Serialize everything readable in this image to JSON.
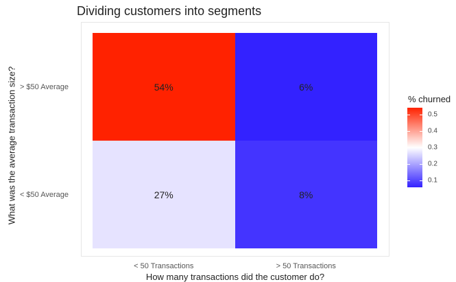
{
  "chart_data": {
    "type": "heatmap",
    "title": "Dividing customers into segments",
    "xlabel": "How many transactions did the customer do?",
    "ylabel": "What was the average transaction size?",
    "x_categories": [
      "< 50 Transactions",
      "> 50 Transactions"
    ],
    "y_categories": [
      "> $50 Average",
      "< $50 Average"
    ],
    "cells": [
      {
        "x": "< 50 Transactions",
        "y": "> $50 Average",
        "value": 0.54,
        "label": "54%"
      },
      {
        "x": "> 50 Transactions",
        "y": "> $50 Average",
        "value": 0.06,
        "label": "6%"
      },
      {
        "x": "< 50 Transactions",
        "y": "< $50 Average",
        "value": 0.27,
        "label": "27%"
      },
      {
        "x": "> 50 Transactions",
        "y": "< $50 Average",
        "value": 0.08,
        "label": "8%"
      }
    ],
    "legend": {
      "title": "% churned",
      "ticks": [
        "0.5",
        "0.4",
        "0.3",
        "0.2",
        "0.1"
      ],
      "tick_values": [
        0.5,
        0.4,
        0.3,
        0.2,
        0.1
      ],
      "range": [
        0.06,
        0.54
      ],
      "low_color": "#3322ff",
      "mid_color": "#ffffff",
      "high_color": "#ff2200",
      "midpoint": 0.3,
      "placement": "right"
    }
  }
}
